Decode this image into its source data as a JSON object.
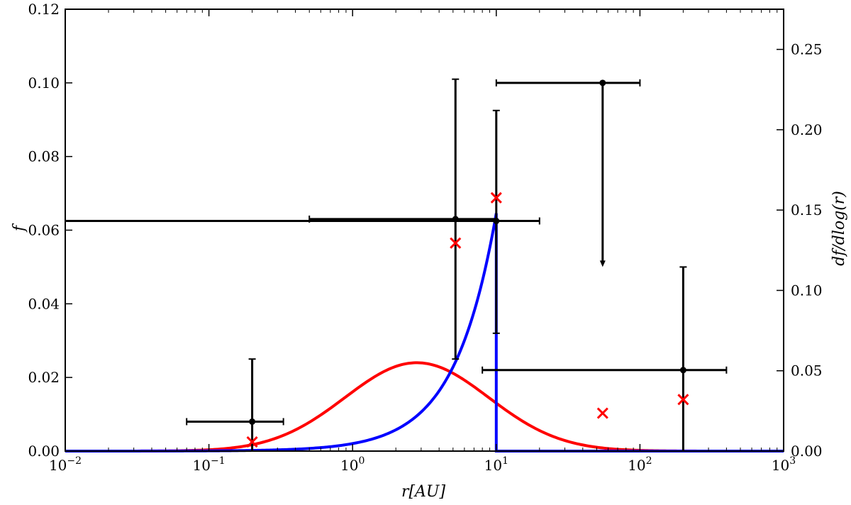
{
  "chart_data": {
    "type": "scatter",
    "title": "",
    "xlabel": "r[AU]",
    "ylabel_left": "f",
    "ylabel_right": "df/dlog(r)",
    "x_scale": "log",
    "xlim": [
      0.01,
      1000
    ],
    "ylim_left": [
      0,
      0.12
    ],
    "ylim_right": [
      0,
      0.275
    ],
    "grid": false,
    "x_ticks": [
      {
        "value": 0.01,
        "base": "10",
        "exp": "−2"
      },
      {
        "value": 0.1,
        "base": "10",
        "exp": "−1"
      },
      {
        "value": 1,
        "base": "10",
        "exp": "0"
      },
      {
        "value": 10,
        "base": "10",
        "exp": "1"
      },
      {
        "value": 100,
        "base": "10",
        "exp": "2"
      },
      {
        "value": 1000,
        "base": "10",
        "exp": "3"
      }
    ],
    "y_ticks_left": [
      {
        "value": 0,
        "label": "0.00"
      },
      {
        "value": 0.02,
        "label": "0.02"
      },
      {
        "value": 0.04,
        "label": "0.04"
      },
      {
        "value": 0.06,
        "label": "0.06"
      },
      {
        "value": 0.08,
        "label": "0.08"
      },
      {
        "value": 0.1,
        "label": "0.10"
      },
      {
        "value": 0.12,
        "label": "0.12"
      }
    ],
    "y_ticks_right": [
      {
        "value": 0,
        "label": "0.00"
      },
      {
        "value": 0.05,
        "label": "0.05"
      },
      {
        "value": 0.1,
        "label": "0.10"
      },
      {
        "value": 0.15,
        "label": "0.15"
      },
      {
        "value": 0.2,
        "label": "0.20"
      },
      {
        "value": 0.25,
        "label": "0.25"
      }
    ],
    "errorbar_points": [
      {
        "x": 0.2,
        "y": 0.008,
        "xerr": [
          0.07,
          0.33
        ],
        "yerr": [
          0.0,
          0.025
        ],
        "upper_limit": false
      },
      {
        "x": 5.2,
        "y": 0.063,
        "xerr": [
          0.5,
          10
        ],
        "yerr": [
          0.025,
          0.101
        ],
        "upper_limit": false
      },
      {
        "x": 10,
        "y": 0.0625,
        "xerr": [
          0.01,
          20
        ],
        "yerr": [
          0.032,
          0.0925
        ],
        "upper_limit": false
      },
      {
        "x": 55,
        "y": 0.1,
        "xerr": [
          10,
          100
        ],
        "yerr": [
          0.05,
          0.1
        ],
        "upper_limit": true
      },
      {
        "x": 200,
        "y": 0.022,
        "xerr": [
          8,
          400
        ],
        "yerr": [
          0.0,
          0.05
        ],
        "upper_limit": false
      }
    ],
    "model_markers": [
      {
        "x": 0.2,
        "y": 0.0025
      },
      {
        "x": 5.2,
        "y": 0.0565
      },
      {
        "x": 10,
        "y": 0.0688
      },
      {
        "x": 55,
        "y": 0.0103
      },
      {
        "x": 200,
        "y": 0.014
      }
    ],
    "series": [
      {
        "type": "lognormal",
        "axis": "right",
        "peak_x": 2.8,
        "peak_y": 0.055,
        "sigma_log10": 0.5
      },
      {
        "type": "power_law_cutoff",
        "axis": "right",
        "x_max": 10,
        "y_at_max": 0.148,
        "exponent": 1.5
      }
    ],
    "colors": {
      "points": "#000000",
      "markers": "#ff0000",
      "lognormal_curve": "#ff0000",
      "power_law_curve": "#0000ff"
    }
  }
}
